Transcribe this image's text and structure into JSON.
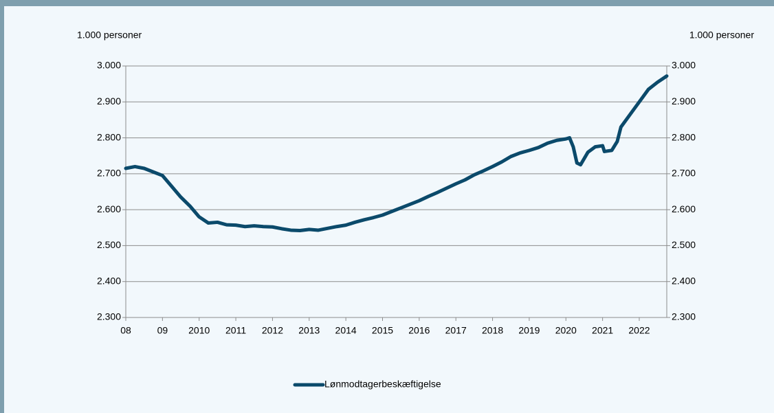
{
  "chart_data": {
    "type": "line",
    "y_axis_label": "1.000 personer",
    "y2_axis_label": "1.000 personer",
    "x": [
      2008.0,
      2008.25,
      2008.5,
      2008.75,
      2009.0,
      2009.25,
      2009.5,
      2009.75,
      2010.0,
      2010.25,
      2010.5,
      2010.75,
      2011.0,
      2011.25,
      2011.5,
      2011.75,
      2012.0,
      2012.25,
      2012.5,
      2012.75,
      2013.0,
      2013.25,
      2013.5,
      2013.75,
      2014.0,
      2014.25,
      2014.5,
      2014.75,
      2015.0,
      2015.25,
      2015.5,
      2015.75,
      2016.0,
      2016.25,
      2016.5,
      2016.75,
      2017.0,
      2017.25,
      2017.5,
      2017.75,
      2018.0,
      2018.25,
      2018.5,
      2018.75,
      2019.0,
      2019.25,
      2019.5,
      2019.75,
      2020.0,
      2020.1,
      2020.2,
      2020.3,
      2020.4,
      2020.6,
      2020.8,
      2021.0,
      2021.05,
      2021.25,
      2021.4,
      2021.5,
      2021.75,
      2022.0,
      2022.25,
      2022.5,
      2022.75
    ],
    "series": [
      {
        "name": "Lønmodtagerbeskæftigelse",
        "color": "#0b4a6b",
        "values": [
          2715,
          2720,
          2715,
          2705,
          2695,
          2665,
          2635,
          2610,
          2580,
          2563,
          2565,
          2558,
          2557,
          2553,
          2555,
          2553,
          2552,
          2547,
          2543,
          2542,
          2545,
          2543,
          2548,
          2553,
          2557,
          2565,
          2572,
          2578,
          2585,
          2595,
          2605,
          2615,
          2625,
          2637,
          2648,
          2660,
          2672,
          2683,
          2697,
          2708,
          2720,
          2733,
          2748,
          2758,
          2765,
          2773,
          2785,
          2793,
          2797,
          2800,
          2775,
          2730,
          2725,
          2760,
          2775,
          2778,
          2762,
          2765,
          2790,
          2830,
          2865,
          2900,
          2935,
          2955,
          2972
        ]
      }
    ],
    "xlim": [
      2008,
      2022.75
    ],
    "xticks": [
      {
        "value": 2008,
        "label": "08"
      },
      {
        "value": 2009,
        "label": "09"
      },
      2010,
      2011,
      2012,
      2013,
      2014,
      2015,
      2016,
      2017,
      2018,
      2019,
      2020,
      2021,
      2022
    ],
    "ylim": [
      2300,
      3000
    ],
    "yticks": [
      {
        "value": 2300,
        "label": "2.300"
      },
      {
        "value": 2400,
        "label": "2.400"
      },
      {
        "value": 2500,
        "label": "2.500"
      },
      {
        "value": 2600,
        "label": "2.600"
      },
      {
        "value": 2700,
        "label": "2.700"
      },
      {
        "value": 2800,
        "label": "2.800"
      },
      {
        "value": 2900,
        "label": "2.900"
      },
      {
        "value": 3000,
        "label": "3.000"
      }
    ],
    "y2lim": [
      2300,
      3000
    ],
    "y2ticks": [
      {
        "value": 2300,
        "label": "2.300"
      },
      {
        "value": 2400,
        "label": "2.400"
      },
      {
        "value": 2500,
        "label": "2.500"
      },
      {
        "value": 2600,
        "label": "2.600"
      },
      {
        "value": 2700,
        "label": "2.700"
      },
      {
        "value": 2800,
        "label": "2.800"
      },
      {
        "value": 2900,
        "label": "2.900"
      },
      {
        "value": 3000,
        "label": "3.000"
      }
    ],
    "grid": true,
    "legend": "bottom"
  }
}
